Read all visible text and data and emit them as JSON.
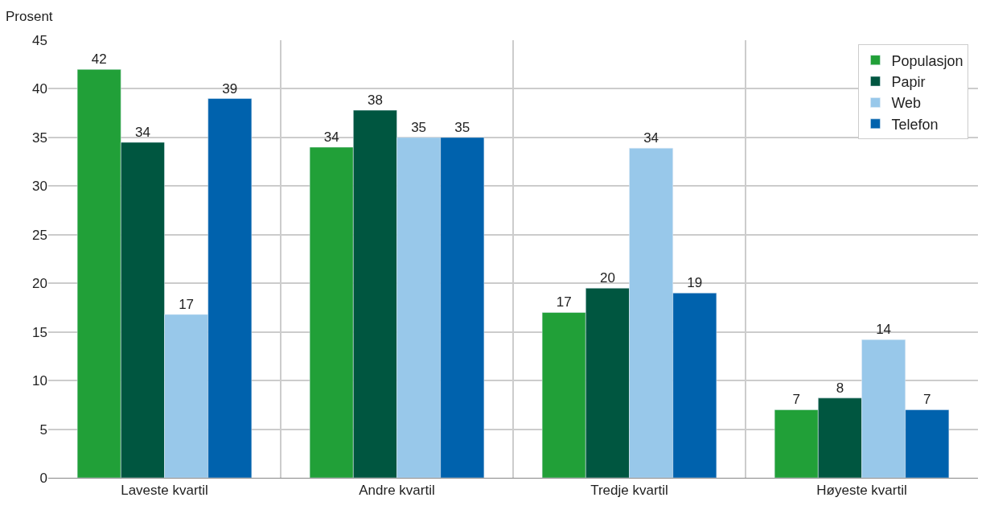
{
  "chart_data": {
    "type": "bar",
    "ylabel": "Prosent",
    "categories": [
      "Laveste kvartil",
      "Andre kvartil",
      "Tredje kvartil",
      "Høyeste kvartil"
    ],
    "series": [
      {
        "name": "Populasjon",
        "color": "#21a038",
        "values": [
          42,
          34,
          17,
          7
        ],
        "value_labels": [
          "42",
          "34",
          "17",
          "7"
        ]
      },
      {
        "name": "Papir",
        "color": "#005640",
        "values": [
          34.5,
          37.8,
          19.5,
          8.2
        ],
        "value_labels": [
          "34",
          "38",
          "20",
          "8"
        ]
      },
      {
        "name": "Web",
        "color": "#98c8ea",
        "values": [
          16.8,
          35,
          33.9,
          14.2
        ],
        "value_labels": [
          "17",
          "35",
          "34",
          "14"
        ]
      },
      {
        "name": "Telefon",
        "color": "#0062ad",
        "values": [
          39,
          35,
          19,
          7
        ],
        "value_labels": [
          "39",
          "35",
          "19",
          "7"
        ]
      }
    ],
    "ylim": [
      0,
      45
    ],
    "yticks": [
      0,
      5,
      10,
      15,
      20,
      25,
      30,
      35,
      40,
      45
    ],
    "grid": true,
    "legend": "top right"
  }
}
